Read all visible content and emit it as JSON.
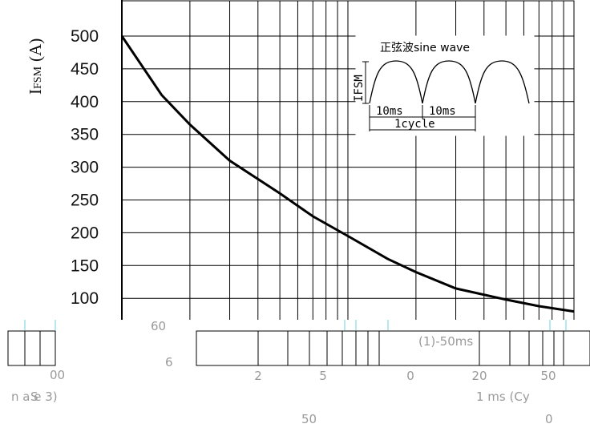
{
  "chart_data": {
    "type": "line",
    "y_axis_label_main": "I",
    "y_axis_label_sub": "FSM",
    "y_axis_label_unit": "(A)",
    "y_ticks": [
      "500",
      "450",
      "400",
      "350",
      "300",
      "250",
      "200",
      "150",
      "100"
    ],
    "ylim": [
      75,
      550
    ],
    "x_scale": "log",
    "x_range_cycles": [
      1,
      100
    ],
    "x_tick_labels": [
      "2",
      "5",
      "0",
      "20",
      "50"
    ],
    "x_label": "",
    "grid": true,
    "series": [
      {
        "x": [
          1,
          1.5,
          2,
          3,
          5,
          7,
          10,
          15,
          20,
          30,
          50,
          70,
          100
        ],
        "y": [
          500,
          410,
          365,
          310,
          260,
          225,
          195,
          160,
          140,
          115,
          98,
          88,
          80
        ]
      }
    ],
    "inset": {
      "title": "正弦波sine wave",
      "amplitude_label": "IFSM",
      "half_period_labels": [
        "10ms",
        "10ms"
      ],
      "cycle_label": "1cycle"
    },
    "faded_texts": [
      "60",
      "6",
      "1 ms (Cy",
      "00",
      "S",
      "n a e 3)",
      "(1)-50ms",
      "50",
      "0"
    ]
  }
}
